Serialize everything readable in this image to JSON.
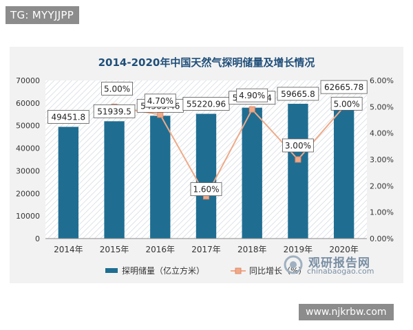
{
  "watermark_top": "TG: MYYJJPP",
  "watermark_bottom": "www.njkrbw.com",
  "logo": {
    "name": "观研报告网",
    "url": "chinabaogao.com"
  },
  "chart_data": {
    "type": "bar",
    "title": "2014-2020年中国天然气探明储量及增长情况",
    "categories": [
      "2014年",
      "2015年",
      "2016年",
      "2017年",
      "2018年",
      "2019年",
      "2020年"
    ],
    "series": [
      {
        "name": "探明储量（亿立方米）",
        "type": "bar",
        "axis": "left",
        "color": "#1f6e92",
        "values": [
          49451.8,
          51939.5,
          54365.46,
          55220.96,
          57936.04,
          59665.8,
          62665.78
        ],
        "labels": [
          "49451.8",
          "51939.5",
          "54365.46",
          "55220.96",
          "57936.04",
          "59665.8",
          "62665.78"
        ]
      },
      {
        "name": "同比增长（%）",
        "type": "line",
        "axis": "right",
        "color": "#f0a987",
        "values": [
          null,
          5.0,
          4.7,
          1.6,
          4.9,
          3.0,
          5.0
        ],
        "labels": [
          "",
          "5.00%",
          "4.70%",
          "1.60%",
          "4.90%",
          "3.00%",
          "5.00%"
        ]
      }
    ],
    "y_left": {
      "min": 0,
      "max": 70000,
      "ticks": [
        "0",
        "10000",
        "20000",
        "30000",
        "40000",
        "50000",
        "60000",
        "70000"
      ]
    },
    "y_right": {
      "min": 0,
      "max": 6,
      "ticks": [
        "0.00%",
        "1.00%",
        "2.00%",
        "3.00%",
        "4.00%",
        "5.00%",
        "6.00%"
      ]
    },
    "legend_position": "bottom",
    "grid": false
  }
}
